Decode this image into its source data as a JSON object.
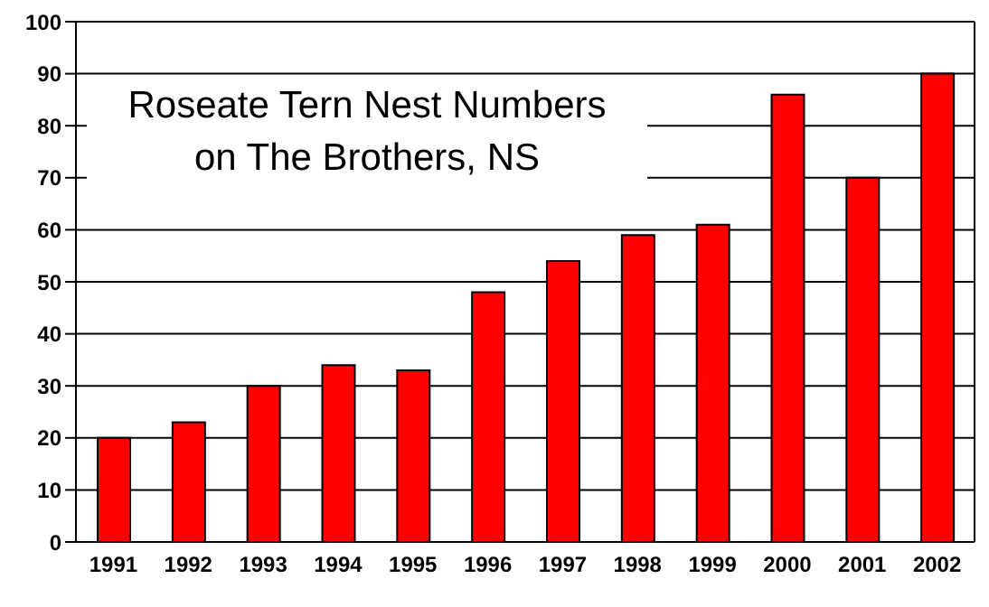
{
  "chart_data": {
    "type": "bar",
    "title": "Roseate Tern Nest Numbers\non The Brothers, NS",
    "categories": [
      "1991",
      "1992",
      "1993",
      "1994",
      "1995",
      "1996",
      "1997",
      "1998",
      "1999",
      "2000",
      "2001",
      "2002"
    ],
    "values": [
      20,
      23,
      30,
      34,
      33,
      48,
      54,
      59,
      61,
      86,
      70,
      90
    ],
    "color": "#ff0000",
    "ylim": [
      0,
      100
    ],
    "yticks": [
      0,
      10,
      20,
      30,
      40,
      50,
      60,
      70,
      80,
      90,
      100
    ],
    "grid": "y",
    "legend": false
  }
}
